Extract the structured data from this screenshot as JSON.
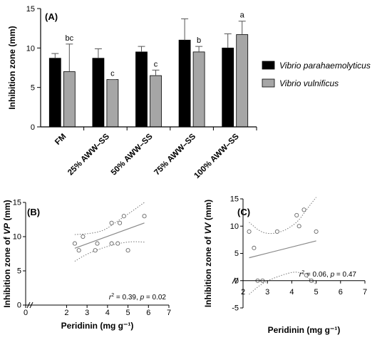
{
  "chart_data": [
    {
      "panel": "(A)",
      "type": "bar",
      "ylabel": "Inhibition zone (mm)",
      "ylim": [
        0,
        15
      ],
      "yticks": [
        0,
        5,
        10,
        15
      ],
      "categories": [
        "FM",
        "25% AWW–SS",
        "50% AWW–SS",
        "75% AWW–SS",
        "100% AWW–SS"
      ],
      "series": [
        {
          "name": "Vibrio parahaemolyticus",
          "color": "#000000",
          "values": [
            8.7,
            8.7,
            9.5,
            11.0,
            10.0
          ],
          "errors": [
            0.6,
            1.2,
            0.7,
            2.7,
            1.8
          ],
          "letters": [
            "",
            "",
            "",
            "",
            ""
          ]
        },
        {
          "name": "Vibrio vulnificus",
          "color": "#a6a6a6",
          "values": [
            7.0,
            6.0,
            6.5,
            9.5,
            11.7
          ],
          "errors": [
            3.5,
            0.0,
            0.7,
            0.7,
            1.7
          ],
          "letters": [
            "bc",
            "c",
            "c",
            "b",
            "a"
          ]
        }
      ],
      "legend_position": "right"
    },
    {
      "panel": "(B)",
      "type": "scatter",
      "xlabel": "Peridinin (mg g⁻¹)",
      "ylabel_pre": "Inhibition zone of ",
      "ylabel_italic": "VP",
      "ylabel_post": " (mm)",
      "xlim": [
        0,
        7
      ],
      "xticks": [
        0,
        2,
        3,
        4,
        5,
        6,
        7
      ],
      "ylim": [
        0,
        15
      ],
      "yticks": [
        0,
        5,
        10,
        15
      ],
      "points": [
        [
          2.4,
          9
        ],
        [
          2.6,
          8
        ],
        [
          2.8,
          10
        ],
        [
          3.4,
          8
        ],
        [
          3.5,
          9
        ],
        [
          4.2,
          12
        ],
        [
          4.2,
          9
        ],
        [
          4.5,
          9
        ],
        [
          4.6,
          12
        ],
        [
          4.8,
          13
        ],
        [
          5.0,
          8
        ],
        [
          5.8,
          13
        ]
      ],
      "fit": {
        "x0": 2.4,
        "y0": 8.3,
        "x1": 5.8,
        "y1": 12.0
      },
      "ci_upper": [
        [
          2.4,
          10.3
        ],
        [
          3.0,
          10.4
        ],
        [
          3.8,
          10.8
        ],
        [
          4.5,
          12.3
        ],
        [
          5.2,
          13.7
        ],
        [
          5.8,
          15.0
        ]
      ],
      "ci_lower": [
        [
          2.4,
          6.4
        ],
        [
          3.0,
          7.5
        ],
        [
          3.8,
          8.4
        ],
        [
          4.5,
          9.0
        ],
        [
          5.2,
          9.3
        ],
        [
          5.8,
          9.2
        ]
      ],
      "stat_r2": "0.39",
      "stat_p": "0.02"
    },
    {
      "panel": "(C)",
      "type": "scatter",
      "xlabel": "Peridinin (mg g⁻¹)",
      "ylabel_pre": "Inhibition zone of ",
      "ylabel_italic": "VV",
      "ylabel_post": " (mm)",
      "xlim": [
        2,
        7
      ],
      "xticks": [
        2,
        3,
        4,
        5,
        6,
        7
      ],
      "ylim": [
        -5,
        15
      ],
      "yticks": [
        -5,
        0,
        5,
        10,
        15
      ],
      "points": [
        [
          2.25,
          9
        ],
        [
          2.45,
          6
        ],
        [
          2.6,
          0
        ],
        [
          2.8,
          0
        ],
        [
          3.4,
          9
        ],
        [
          4.2,
          12
        ],
        [
          4.3,
          10
        ],
        [
          4.5,
          13
        ],
        [
          4.6,
          1
        ],
        [
          4.8,
          0
        ],
        [
          5.0,
          9
        ]
      ],
      "fit": {
        "x0": 2.25,
        "y0": 4.2,
        "x1": 5.0,
        "y1": 7.3
      },
      "ci_upper": [
        [
          2.25,
          10.7
        ],
        [
          2.8,
          8.6
        ],
        [
          3.5,
          8.7
        ],
        [
          4.2,
          10.5
        ],
        [
          4.6,
          13.0
        ],
        [
          5.0,
          15.3
        ]
      ],
      "ci_lower": [
        [
          2.25,
          -2.5
        ],
        [
          2.8,
          -0.4
        ],
        [
          3.5,
          0.9
        ],
        [
          4.2,
          1.8
        ],
        [
          4.6,
          0.8
        ],
        [
          5.0,
          -0.7
        ]
      ],
      "stat_r2": "0.06",
      "stat_p": "0.47"
    }
  ]
}
